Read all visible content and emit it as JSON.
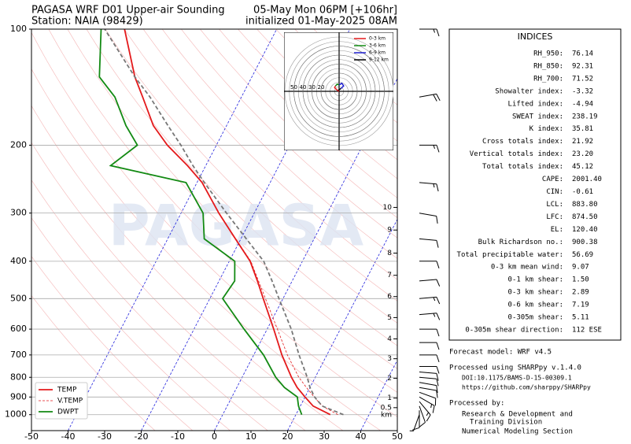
{
  "chart_data": [
    {
      "type": "skewt",
      "title": "PAGASA WRF D01 Upper-air Sounding",
      "subtitle": "Station: NAIA (98429)",
      "title_right": "05-May Mon 06PM [+106hr]",
      "subtitle_right": "initialized 01-May-2025 08AM",
      "watermark": "PAGASA",
      "pressure": [
        1000,
        950,
        900,
        850,
        800,
        700,
        600,
        500,
        450,
        400,
        350,
        300,
        250,
        226,
        200,
        178,
        150,
        133,
        100
      ],
      "series": [
        {
          "name": "TEMP",
          "color": "#e41a1c",
          "dash": false,
          "values": [
            29.4,
            23.5,
            20.0,
            16.5,
            13.5,
            7.7,
            1.8,
            -5.4,
            -9.5,
            -14.3,
            -21.5,
            -29.7,
            -38.6,
            -45,
            -53.4,
            -60,
            -67,
            -72,
            -81.6
          ]
        },
        {
          "name": "V.TEMP",
          "color": "#e41a1c",
          "dash": true,
          "values": [
            31.5,
            26,
            22.5,
            19,
            15.5,
            9.2,
            2.8,
            -4.8,
            -9.2,
            -14.1,
            -21.4,
            -29.6,
            -38.6,
            -45,
            -53.4,
            -60,
            -67,
            -72,
            -81.6
          ]
        },
        {
          "name": "DWPT",
          "color": "#138a13",
          "dash": false,
          "values": [
            21.6,
            19.5,
            17.9,
            13,
            9.2,
            2.7,
            -6.3,
            -16.5,
            -15.7,
            -18.5,
            -30,
            -34,
            -43,
            -66,
            -61.6,
            -67.5,
            -74.6,
            -81.7,
            -88
          ]
        },
        {
          "color": "#777777",
          "dash": true,
          "values": [
            33,
            26,
            22.6,
            20,
            17.8,
            12.4,
            6.6,
            -1.1,
            -5.5,
            -10.6,
            -18.5,
            -27.6,
            -38,
            -43.5,
            -49.7,
            -56,
            -65,
            -72,
            -87
          ]
        }
      ],
      "xlim": [
        -50,
        50
      ],
      "xticks": [
        -50,
        -40,
        -30,
        -20,
        -10,
        0,
        10,
        20,
        30,
        40,
        50
      ],
      "ylim": [
        1100,
        100
      ],
      "yticks": [
        100,
        200,
        300,
        400,
        500,
        600,
        700,
        800,
        900,
        1000
      ],
      "height_ticks": [
        {
          "value": 290,
          "label": "10"
        },
        {
          "value": 332,
          "label": "9"
        },
        {
          "value": 381,
          "label": "8"
        },
        {
          "value": 435,
          "label": "7"
        },
        {
          "value": 494,
          "label": "6"
        },
        {
          "value": 560,
          "label": "5"
        },
        {
          "value": 636,
          "label": "4"
        },
        {
          "value": 716,
          "label": "3"
        },
        {
          "value": 805,
          "label": "2"
        },
        {
          "value": 906,
          "label": "1"
        },
        {
          "value": 959,
          "label": "0.5"
        }
      ],
      "height_unit": "km",
      "log_y": true,
      "grid": true,
      "legend": "lower left",
      "winds": {
        "pressure": [
          1000,
          975,
          950,
          925,
          900,
          875,
          850,
          825,
          800,
          775,
          750,
          700,
          650,
          600,
          550,
          500,
          450,
          400,
          350,
          300,
          250,
          200,
          150,
          100
        ],
        "speed": [
          8,
          12,
          14,
          15,
          15,
          14,
          13,
          12,
          12,
          10,
          10,
          10,
          12,
          14,
          15,
          15,
          14,
          12,
          10,
          12,
          15,
          18,
          20,
          15
        ],
        "direction": [
          200,
          180,
          160,
          140,
          120,
          110,
          100,
          100,
          95,
          95,
          90,
          90,
          90,
          90,
          85,
          85,
          85,
          90,
          95,
          100,
          95,
          90,
          80,
          90
        ]
      }
    },
    {
      "type": "hodograph",
      "rlim": 60,
      "rticks": [
        20,
        30,
        40,
        50
      ],
      "series": [
        {
          "name": "0-3 km",
          "color": "#e41a1c",
          "u": [
            0,
            -3,
            -5,
            -4
          ],
          "v": [
            0,
            2,
            4,
            6
          ]
        },
        {
          "name": "3-6 km",
          "color": "#138a13",
          "u": [
            -4,
            -2,
            0
          ],
          "v": [
            6,
            8,
            7
          ]
        },
        {
          "name": "6-9 km",
          "color": "#1f1fd0",
          "u": [
            0,
            3,
            5,
            2
          ],
          "v": [
            7,
            9,
            6,
            3
          ]
        },
        {
          "name": "9-12 km",
          "color": "#000000",
          "u": [
            2,
            -1
          ],
          "v": [
            3,
            1
          ]
        }
      ]
    }
  ],
  "indices": {
    "title": "INDICES",
    "rows": [
      [
        "RH_950:",
        "76.14"
      ],
      [
        "RH_850:",
        "92.31"
      ],
      [
        "RH_700:",
        "71.52"
      ],
      [
        "Showalter index:",
        "-3.32"
      ],
      [
        "Lifted index:",
        "-4.94"
      ],
      [
        "SWEAT index:",
        "238.19"
      ],
      [
        "K index:",
        "35.81"
      ],
      [
        "Cross totals index:",
        "21.92"
      ],
      [
        "Vertical totals index:",
        "23.20"
      ],
      [
        "Total totals index:",
        "45.12"
      ],
      [
        "CAPE:",
        "2001.40"
      ],
      [
        "CIN:",
        "-0.61"
      ],
      [
        "LCL:",
        "883.80"
      ],
      [
        "LFC:",
        "874.50"
      ],
      [
        "EL:",
        "120.40"
      ],
      [
        "Bulk Richardson no.:",
        "900.38"
      ],
      [
        "Total precipitable water:",
        "56.69"
      ],
      [
        "0-3 km mean wind:",
        "9.07"
      ],
      [
        "0-1 km shear:",
        "1.50"
      ],
      [
        "0-3 km shear:",
        "2.89"
      ],
      [
        "0-6 km shear:",
        "7.19"
      ],
      [
        "0-305m shear:",
        "5.11"
      ],
      [
        "0-305m shear direction:",
        "112 ESE"
      ]
    ]
  },
  "footer": {
    "model": "Forecast model: WRF v4.5",
    "processed_using": "Processed using SHARPpy v.1.4.0",
    "doi": "DOI:10.1175/BAMS-D-15-00309.1",
    "url": "https://github.com/sharppy/SHARPpy",
    "processed_by": "Processed by:",
    "org_lines": [
      "Research & Development and",
      "Training Division",
      "Numerical Modeling Section"
    ]
  }
}
